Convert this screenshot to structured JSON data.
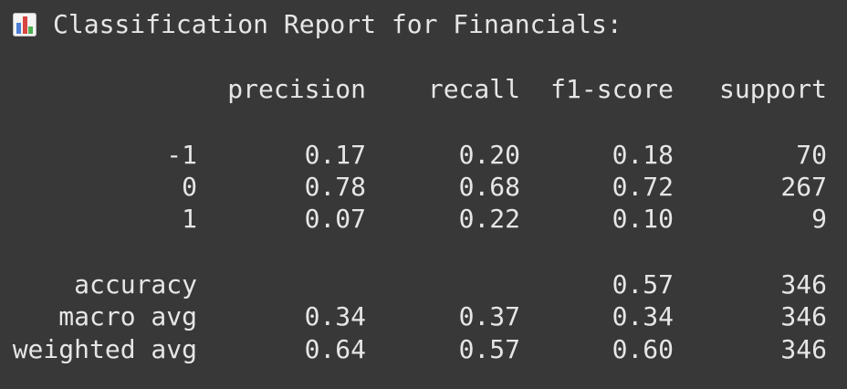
{
  "report": {
    "title": "Classification Report for Financials:",
    "icon": "bar-chart-emoji-icon",
    "headers": [
      "precision",
      "recall",
      "f1-score",
      "support"
    ],
    "rows": [
      {
        "label": "-1",
        "precision": "0.17",
        "recall": "0.20",
        "f1": "0.18",
        "support": "70"
      },
      {
        "label": "0",
        "precision": "0.78",
        "recall": "0.68",
        "f1": "0.72",
        "support": "267"
      },
      {
        "label": "1",
        "precision": "0.07",
        "recall": "0.22",
        "f1": "0.10",
        "support": "9"
      }
    ],
    "summary": [
      {
        "label": "accuracy",
        "precision": "",
        "recall": "",
        "f1": "0.57",
        "support": "346"
      },
      {
        "label": "macro avg",
        "precision": "0.34",
        "recall": "0.37",
        "f1": "0.34",
        "support": "346"
      },
      {
        "label": "weighted avg",
        "precision": "0.64",
        "recall": "0.57",
        "f1": "0.60",
        "support": "346"
      }
    ]
  },
  "colors": {
    "background": "#383838",
    "text": "#e6e6e6"
  }
}
